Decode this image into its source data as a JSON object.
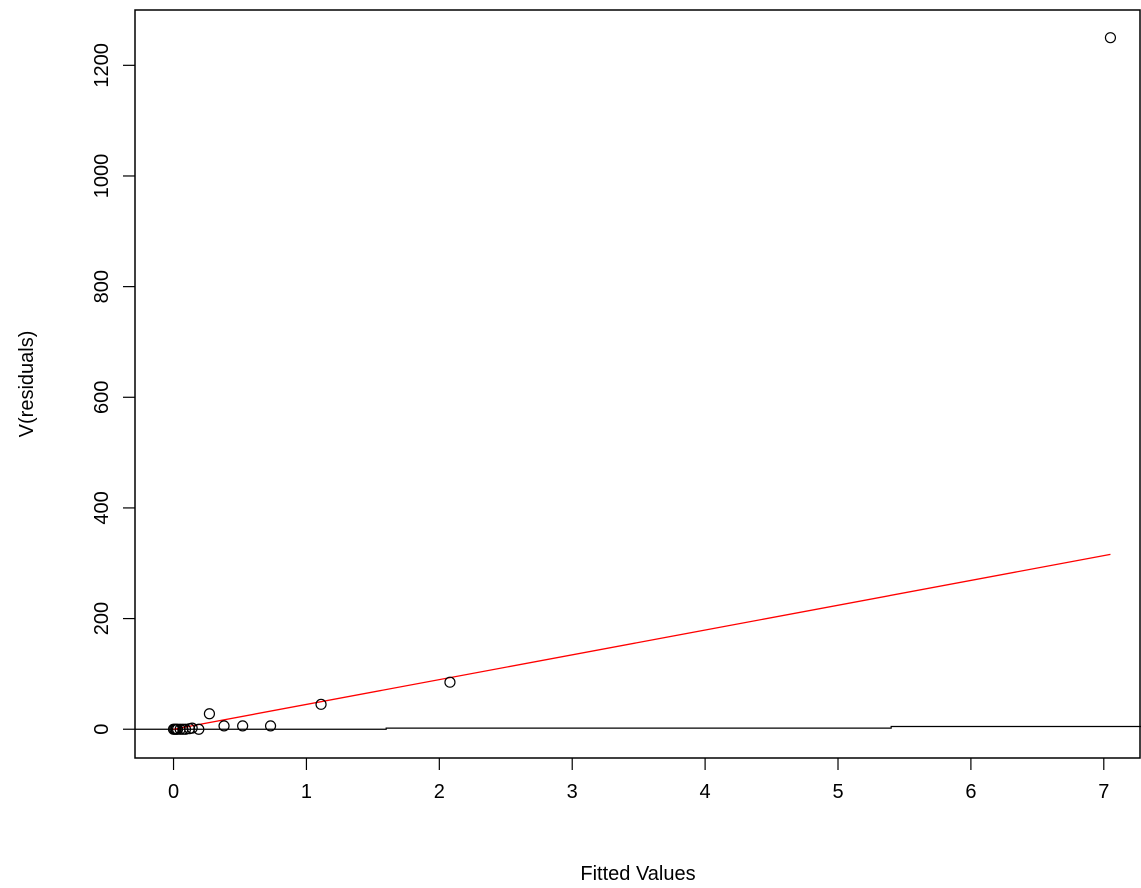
{
  "chart_data": {
    "type": "scatter",
    "xlabel": "Fitted Values",
    "ylabel": "V(residuals)",
    "xlim": [
      -0.29,
      7.28
    ],
    "ylim": [
      -52,
      1300
    ],
    "x_ticks": [
      0,
      1,
      2,
      3,
      4,
      5,
      6,
      7
    ],
    "y_ticks": [
      0,
      200,
      400,
      600,
      800,
      1000,
      1200
    ],
    "points": [
      {
        "x": 0.0,
        "y": 0
      },
      {
        "x": 0.01,
        "y": 0
      },
      {
        "x": 0.02,
        "y": 0
      },
      {
        "x": 0.03,
        "y": 0
      },
      {
        "x": 0.05,
        "y": 0
      },
      {
        "x": 0.07,
        "y": 0
      },
      {
        "x": 0.09,
        "y": 0
      },
      {
        "x": 0.12,
        "y": 1
      },
      {
        "x": 0.14,
        "y": 2
      },
      {
        "x": 0.19,
        "y": 0
      },
      {
        "x": 0.27,
        "y": 28
      },
      {
        "x": 0.38,
        "y": 6
      },
      {
        "x": 0.52,
        "y": 6
      },
      {
        "x": 0.73,
        "y": 6
      },
      {
        "x": 1.11,
        "y": 45
      },
      {
        "x": 2.08,
        "y": 85
      },
      {
        "x": 7.05,
        "y": 1250
      }
    ],
    "red_line": {
      "x": [
        0.0,
        7.05
      ],
      "y": [
        0,
        316
      ]
    },
    "black_line": {
      "x": [
        -0.29,
        1.6,
        1.6,
        5.4,
        5.4,
        7.28
      ],
      "y": [
        0,
        0,
        2,
        2,
        5,
        5
      ]
    },
    "colors": {
      "points": "#000000",
      "red_line": "#ff0000",
      "black_line": "#000000"
    },
    "grid": false,
    "legend": "none"
  }
}
